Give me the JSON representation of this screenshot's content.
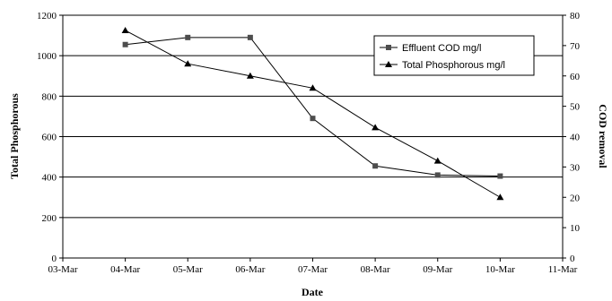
{
  "chart_data": {
    "type": "line",
    "xlabel": "Date",
    "ylabel_left": "Total Phosphorous",
    "ylabel_right": "COD removal",
    "categories": [
      "03-Mar",
      "04-Mar",
      "05-Mar",
      "06-Mar",
      "07-Mar",
      "08-Mar",
      "09-Mar",
      "10-Mar",
      "11-Mar"
    ],
    "y_left": {
      "range": [
        0,
        1200
      ],
      "ticks": [
        "0",
        "200",
        "400",
        "600",
        "800",
        "1000",
        "1200"
      ]
    },
    "y_right": {
      "range": [
        0,
        80
      ],
      "ticks": [
        "0",
        "10",
        "20",
        "30",
        "40",
        "50",
        "60",
        "70",
        "80"
      ]
    },
    "grid": "horizontal",
    "legend_position": "top-right",
    "series": [
      {
        "name": "Effluent COD mg/l",
        "axis": "left",
        "marker": "square",
        "x": [
          "04-Mar",
          "05-Mar",
          "06-Mar",
          "07-Mar",
          "08-Mar",
          "09-Mar",
          "10-Mar"
        ],
        "values": [
          1055,
          1090,
          1090,
          690,
          455,
          410,
          405
        ]
      },
      {
        "name": "Total Phosphorous  mg/l",
        "axis": "right",
        "marker": "triangle",
        "x": [
          "04-Mar",
          "05-Mar",
          "06-Mar",
          "07-Mar",
          "08-Mar",
          "09-Mar",
          "10-Mar"
        ],
        "values": [
          75,
          64,
          60,
          56,
          43,
          32,
          20
        ]
      }
    ]
  }
}
